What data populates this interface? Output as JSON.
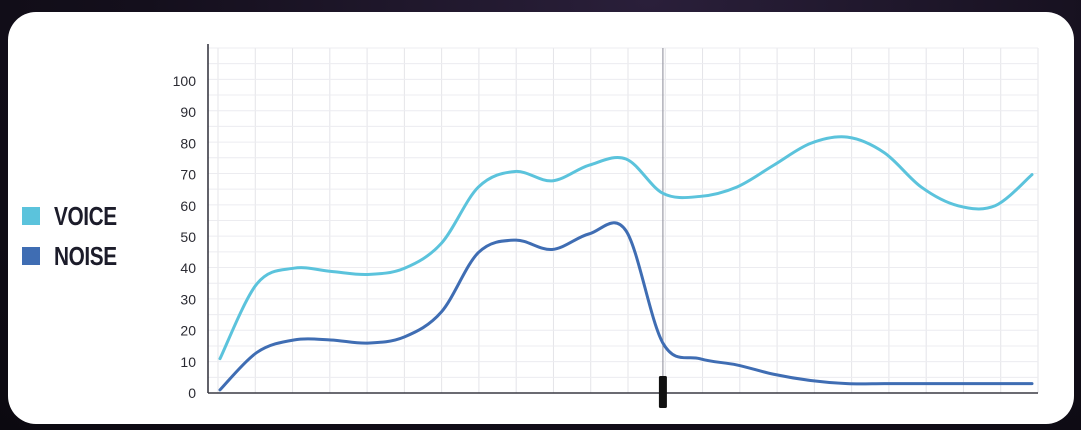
{
  "chart_data": {
    "type": "line",
    "title": "",
    "xlabel": "",
    "ylabel": "",
    "ylim": [
      0,
      100
    ],
    "yticks": [
      0,
      10,
      20,
      30,
      40,
      50,
      60,
      70,
      80,
      90,
      100
    ],
    "grid": true,
    "legend_position": "left",
    "x": [
      0,
      2,
      4,
      6,
      8,
      10,
      12,
      14,
      16,
      18,
      20,
      22,
      24,
      26,
      28,
      30,
      32,
      34,
      36,
      38,
      40,
      42,
      44
    ],
    "series": [
      {
        "name": "VOICE",
        "color": "#5bc3dc",
        "values": [
          11,
          35,
          40,
          39,
          38,
          40,
          48,
          66,
          71,
          68,
          73,
          75,
          64,
          63,
          66,
          73,
          80,
          82,
          77,
          66,
          60,
          60,
          70
        ]
      },
      {
        "name": "NOISE",
        "color": "#3f6db3",
        "values": [
          1,
          13,
          17,
          17,
          16,
          18,
          26,
          45,
          49,
          46,
          51,
          52,
          16,
          11,
          9,
          6,
          4,
          3,
          3,
          3,
          3,
          3,
          3
        ]
      }
    ],
    "marker": {
      "x": 24,
      "color": "#111111"
    }
  }
}
